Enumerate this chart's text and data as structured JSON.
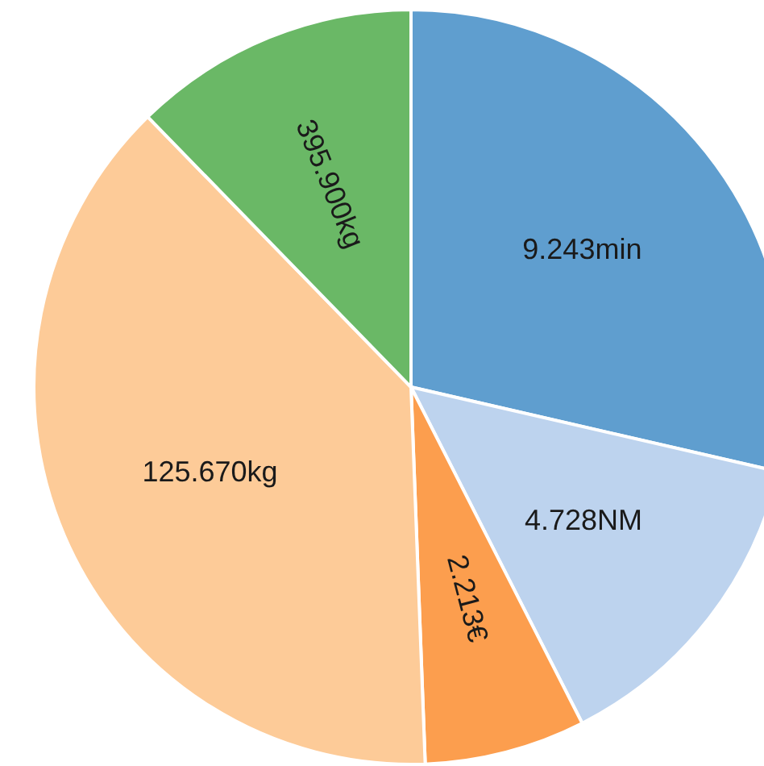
{
  "chart_data": {
    "type": "pie",
    "categories": [
      "9.243min",
      "4.728NM",
      "2.213€",
      "125.670kg",
      "395.900kg"
    ],
    "values": [
      28.6,
      13.9,
      6.9,
      38.3,
      12.3
    ],
    "colors": [
      "#5f9ecf",
      "#bdd3ee",
      "#fc9e4e",
      "#fdcb98",
      "#6ab866"
    ],
    "legend": false
  }
}
